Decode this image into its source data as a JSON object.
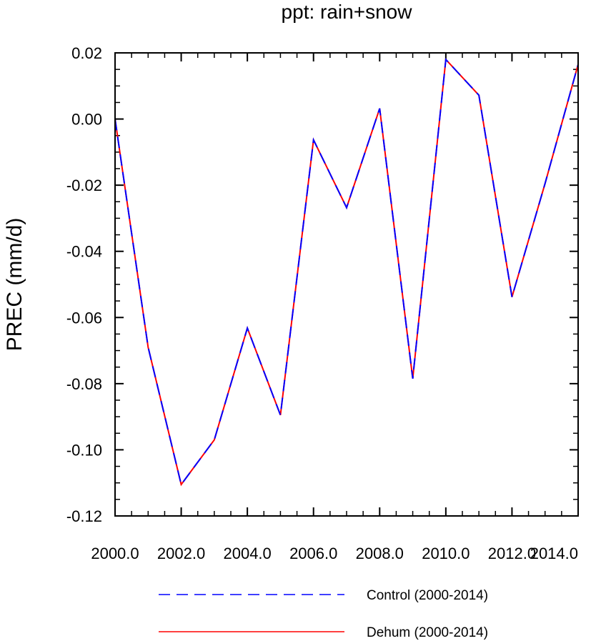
{
  "chart_data": {
    "type": "line",
    "title": "ppt: rain+snow",
    "xlabel": "",
    "ylabel": "PREC  (mm/d)",
    "xlim": [
      2000,
      2014
    ],
    "ylim": [
      -0.12,
      0.02
    ],
    "x_ticks": [
      2000,
      2002,
      2004,
      2006,
      2008,
      2010,
      2012,
      2014
    ],
    "x_tick_labels": [
      "2000.0",
      "2002.0",
      "2004.0",
      "2006.0",
      "2008.0",
      "2010.0",
      "2012.0",
      "2014.0"
    ],
    "y_ticks": [
      0.02,
      0.0,
      -0.02,
      -0.04,
      -0.06,
      -0.08,
      -0.1,
      -0.12
    ],
    "y_tick_labels": [
      "0.02",
      "0.00",
      "-0.02",
      "-0.04",
      "-0.06",
      "-0.08",
      "-0.10",
      "-0.12"
    ],
    "x_minor_step": 0.5,
    "y_minor_step": 0.005,
    "grid": false,
    "legend_position": "bottom",
    "x": [
      2000,
      2001,
      2002,
      2003,
      2004,
      2005,
      2006,
      2007,
      2008,
      2009,
      2010,
      2011,
      2012,
      2013,
      2014
    ],
    "series": [
      {
        "name": "Control (2000-2014)",
        "color": "#0000ff",
        "dash": "dashed",
        "values": [
          0.0,
          -0.069,
          -0.1105,
          -0.097,
          -0.0632,
          -0.0895,
          -0.0063,
          -0.0268,
          0.0032,
          -0.0785,
          0.018,
          0.0072,
          -0.0538,
          -0.0195,
          0.0165
        ]
      },
      {
        "name": "Dehum (2000-2014)",
        "color": "#ff0000",
        "dash": "solid",
        "values": [
          0.0,
          -0.069,
          -0.1105,
          -0.097,
          -0.0632,
          -0.0895,
          -0.0063,
          -0.0268,
          0.0032,
          -0.0785,
          0.018,
          0.0072,
          -0.0538,
          -0.0195,
          0.0165
        ]
      }
    ]
  }
}
